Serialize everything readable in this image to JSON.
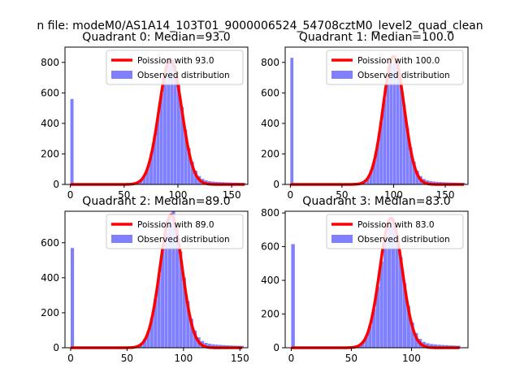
{
  "figure": {
    "title": "n file: modeM0/AS1A14_103T01_9000006524_54708cztM0_level2_quad_clean"
  },
  "chart_data": [
    {
      "type": "bar",
      "title": "Quadrant 0: Median=93.0",
      "xlim": [
        -5,
        165
      ],
      "ylim": [
        0,
        900
      ],
      "xticks": [
        0,
        50,
        100,
        150
      ],
      "yticks": [
        0,
        200,
        400,
        600,
        800
      ],
      "median": 93.0,
      "peak": 820,
      "sigma": 10.5,
      "zero_bin": 560,
      "observed_peak": 800,
      "tail_end": 162,
      "legend": [
        "Poission with 93.0",
        "Observed distribution"
      ]
    },
    {
      "type": "bar",
      "title": "Quadrant 1: Median=100.0",
      "xlim": [
        -5,
        172
      ],
      "ylim": [
        0,
        900
      ],
      "xticks": [
        0,
        50,
        100,
        150
      ],
      "yticks": [
        0,
        200,
        400,
        600,
        800
      ],
      "median": 100.0,
      "peak": 840,
      "sigma": 10.2,
      "zero_bin": 830,
      "observed_peak": 800,
      "tail_end": 168,
      "legend": [
        "Poission with 100.0",
        "Observed distribution"
      ]
    },
    {
      "type": "bar",
      "title": "Quadrant 2: Median=89.0",
      "xlim": [
        -5,
        157
      ],
      "ylim": [
        0,
        780
      ],
      "xticks": [
        0,
        50,
        100,
        150
      ],
      "yticks": [
        0,
        200,
        400,
        600
      ],
      "median": 89.0,
      "peak": 760,
      "sigma": 9.8,
      "zero_bin": 570,
      "observed_peak": 740,
      "tail_end": 152,
      "legend": [
        "Poission with 89.0",
        "Observed distribution"
      ]
    },
    {
      "type": "bar",
      "title": "Quadrant 3: Median=83.0",
      "xlim": [
        -5,
        147
      ],
      "ylim": [
        0,
        810
      ],
      "xticks": [
        0,
        50,
        100
      ],
      "yticks": [
        0,
        200,
        400,
        600,
        800
      ],
      "median": 83.0,
      "peak": 770,
      "sigma": 9.3,
      "zero_bin": 615,
      "observed_peak": 720,
      "tail_end": 140,
      "legend": [
        "Poission with 83.0",
        "Observed distribution"
      ]
    }
  ]
}
